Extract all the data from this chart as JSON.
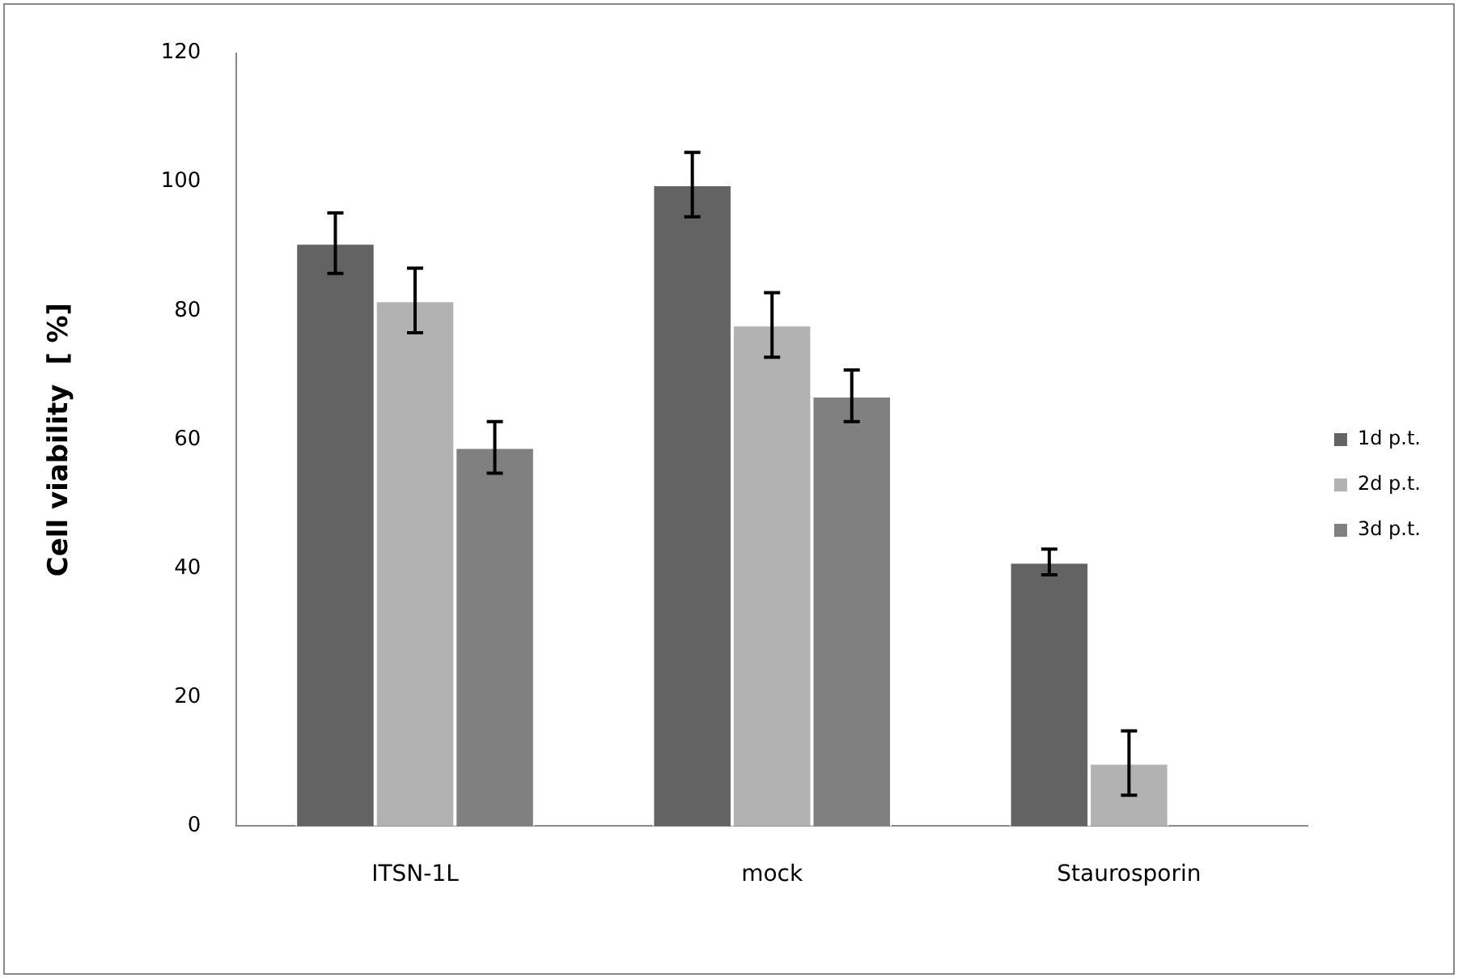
{
  "chart_data": {
    "type": "bar",
    "ylabel": "Cell viability  [ %]",
    "categories": [
      "ITSN-1L",
      "mock",
      "Staurosporin"
    ],
    "series": [
      {
        "name": "1d p.t.",
        "color": "#636363",
        "values": [
          90.5,
          99.6,
          41
        ],
        "errors": [
          4.7,
          5,
          2
        ]
      },
      {
        "name": "2d p.t.",
        "color": "#b2b2b2",
        "values": [
          81.6,
          77.8,
          9.8
        ],
        "errors": [
          5,
          5,
          5
        ]
      },
      {
        "name": "3d p.t.",
        "color": "#808080",
        "values": [
          58.8,
          66.8,
          null
        ],
        "errors": [
          4,
          4,
          null
        ]
      }
    ],
    "ylim": [
      0,
      120
    ],
    "yticks": [
      0,
      20,
      40,
      60,
      80,
      100,
      120
    ],
    "grid": false,
    "legend": "right"
  }
}
